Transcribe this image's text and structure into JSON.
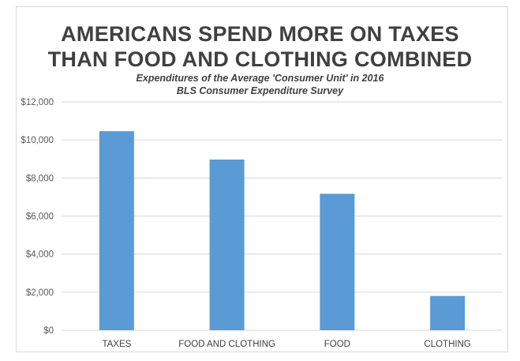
{
  "chart_data": {
    "type": "bar",
    "title": [
      "AMERICANS SPEND MORE ON TAXES",
      "THAN FOOD AND CLOTHING COMBINED"
    ],
    "subtitle": [
      "Expenditures of the Average 'Consumer Unit' in 2016",
      "BLS Consumer Expenditure Survey"
    ],
    "categories": [
      "TAXES",
      "FOOD AND CLOTHING",
      "FOOD",
      "CLOTHING"
    ],
    "values": [
      10460,
      8970,
      7170,
      1800
    ],
    "ylim": [
      0,
      12000
    ],
    "yticks": [
      0,
      2000,
      4000,
      6000,
      8000,
      10000,
      12000
    ],
    "ytick_labels": [
      "$0",
      "$2,000",
      "$4,000",
      "$6,000",
      "$8,000",
      "$10,000",
      "$12,000"
    ],
    "xlabel": "",
    "ylabel": "",
    "grid": true,
    "legend": "none",
    "bar_color": "#5b9bd5"
  }
}
